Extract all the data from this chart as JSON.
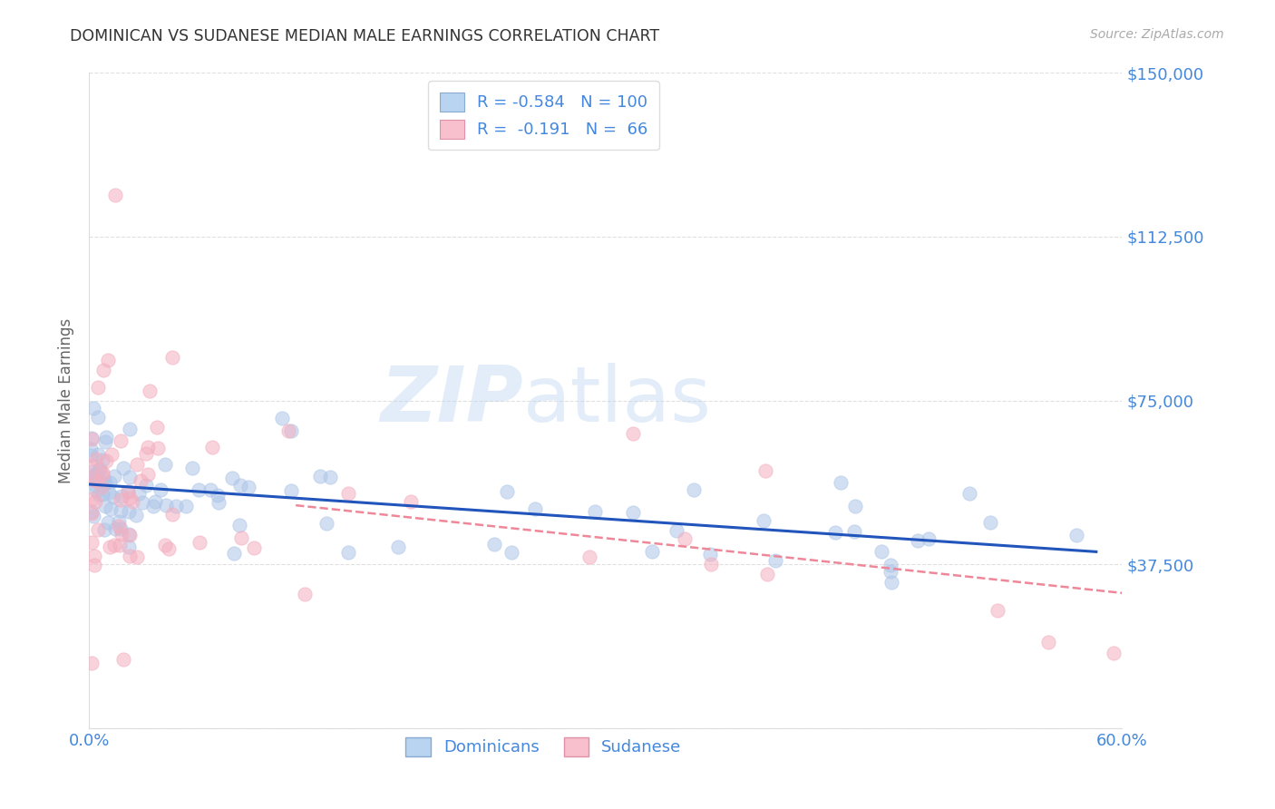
{
  "title": "DOMINICAN VS SUDANESE MEDIAN MALE EARNINGS CORRELATION CHART",
  "source": "Source: ZipAtlas.com",
  "ylabel": "Median Male Earnings",
  "xlim": [
    0.0,
    0.6
  ],
  "ylim": [
    0,
    150000
  ],
  "yticks": [
    0,
    37500,
    75000,
    112500,
    150000
  ],
  "ytick_labels": [
    "",
    "$37,500",
    "$75,000",
    "$112,500",
    "$150,000"
  ],
  "xtick_vals": [
    0.0,
    0.1,
    0.2,
    0.3,
    0.4,
    0.5,
    0.6
  ],
  "xtick_labels": [
    "0.0%",
    "",
    "",
    "",
    "",
    "",
    "60.0%"
  ],
  "blue_color": "#aec6e8",
  "pink_color": "#f4afc0",
  "trend_blue": "#2255bb",
  "trend_pink": "#ee8899",
  "axis_color": "#4488dd",
  "title_color": "#333333",
  "background_color": "#ffffff",
  "grid_color": "#cccccc",
  "dot_size": 120,
  "dot_alpha": 0.55,
  "watermark_color": "#b8d4f0",
  "watermark_alpha": 0.4,
  "dominicans_label": "Dominicans",
  "sudanese_label": "Sudanese",
  "legend_labels": [
    "R = -0.584   N = 100",
    "R =  -0.191   N =  66"
  ]
}
